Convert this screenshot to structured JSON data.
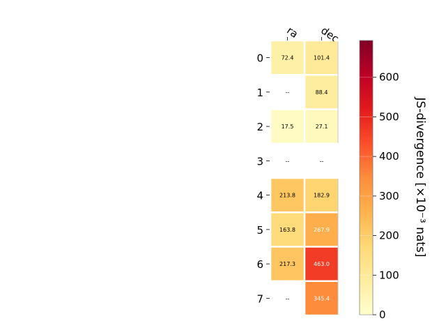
{
  "chart_data": {
    "type": "heatmap",
    "columns": [
      "ra",
      "dec"
    ],
    "rows": [
      "0",
      "1",
      "2",
      "3",
      "4",
      "5",
      "6",
      "7"
    ],
    "values": [
      [
        72.4,
        101.4
      ],
      [
        null,
        88.4
      ],
      [
        17.5,
        27.1
      ],
      [
        null,
        null
      ],
      [
        213.8,
        182.9
      ],
      [
        163.8,
        267.9
      ],
      [
        217.3,
        463.0
      ],
      [
        null,
        345.4
      ]
    ],
    "cell_labels": [
      [
        "72.4",
        "101.4"
      ],
      [
        "--",
        "88.4"
      ],
      [
        "17.5",
        "27.1"
      ],
      [
        "--",
        "--"
      ],
      [
        "213.8",
        "182.9"
      ],
      [
        "163.8",
        "267.9"
      ],
      [
        "217.3",
        "463.0"
      ],
      [
        "--",
        "345.4"
      ]
    ],
    "colorbar": {
      "label": "JS-divergence [×10⁻³ nats]",
      "range": [
        0,
        693
      ],
      "ticks": [
        "0",
        "100",
        "200",
        "300",
        "400",
        "500",
        "600"
      ],
      "tick_values": [
        0,
        100,
        200,
        300,
        400,
        500,
        600
      ],
      "colormap": "YlOrRd"
    }
  }
}
